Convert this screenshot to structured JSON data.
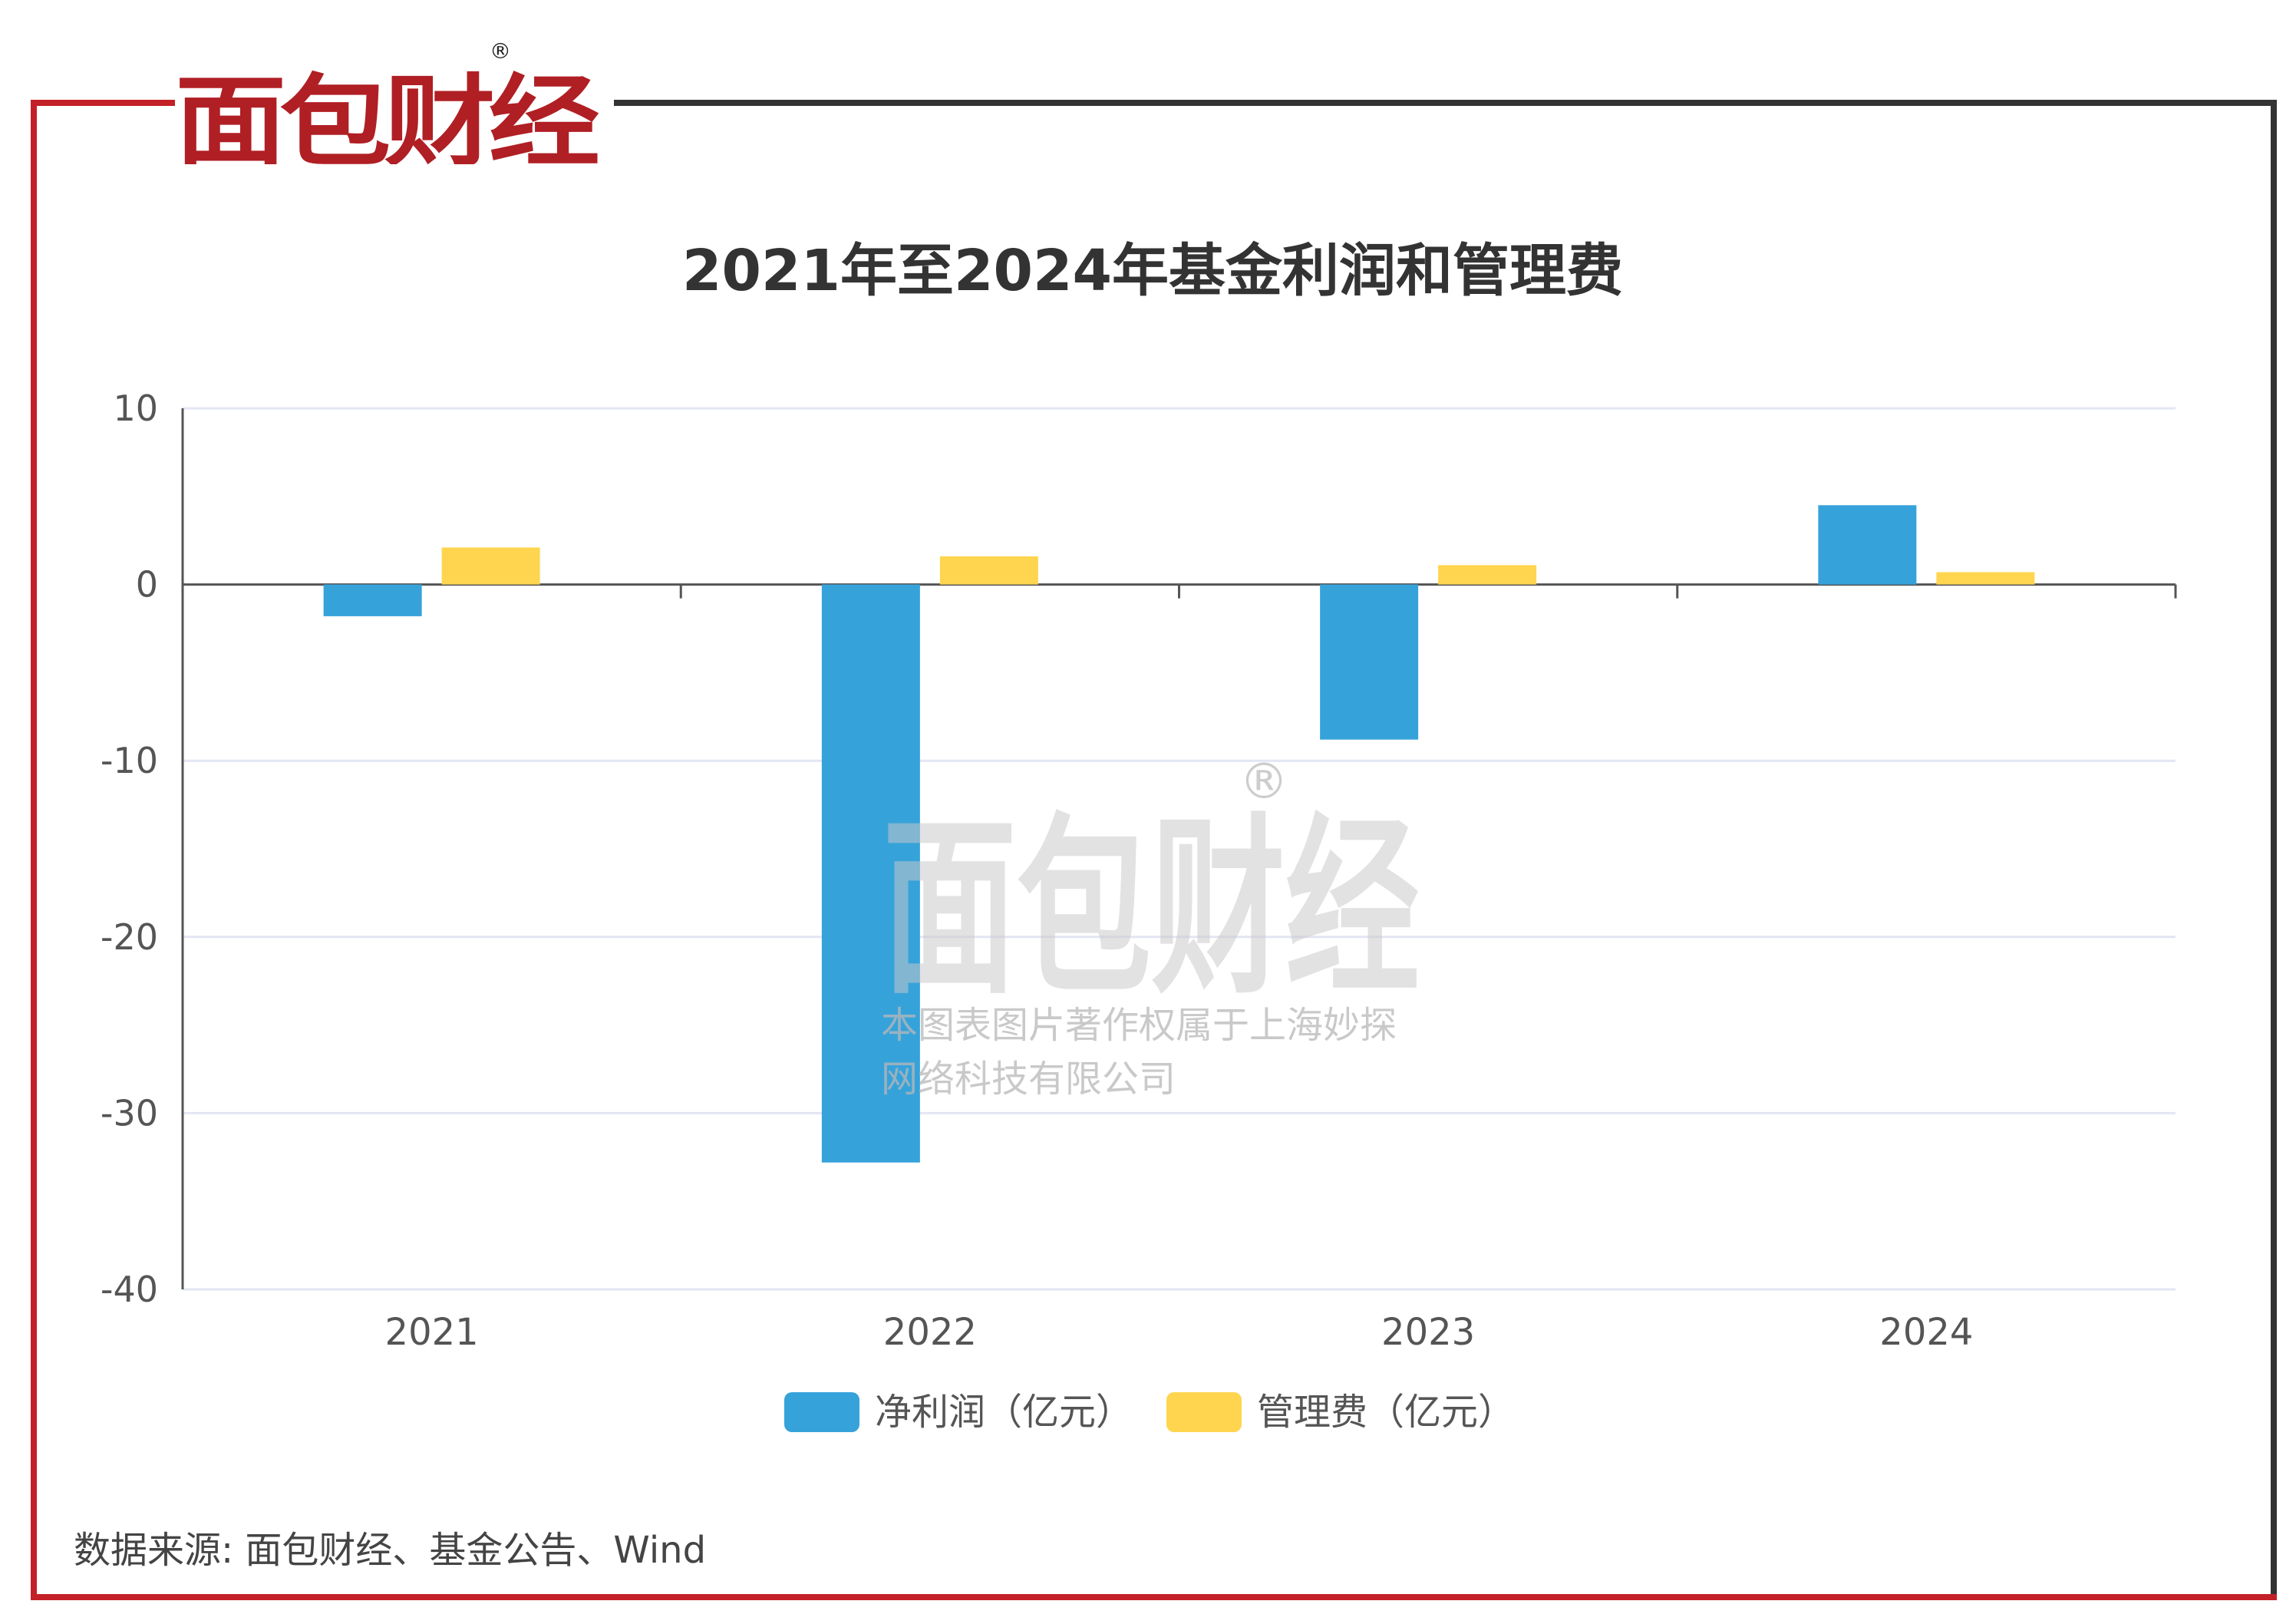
{
  "brand": {
    "logo_text": "面包财经",
    "registered_mark": "®"
  },
  "watermark": {
    "logo_text": "面包财经",
    "registered_mark": "®",
    "line1": "本图表图片著作权属于上海妙探",
    "line2": "网络科技有限公司"
  },
  "source": "数据来源: 面包财经、基金公告、Wind",
  "colors": {
    "frame_red": "#c42027",
    "frame_dark": "#333333",
    "net_profit": "#36a2da",
    "mgmt_fee": "#ffd54f",
    "grid": "#e3e6f3"
  },
  "chart_data": {
    "type": "bar",
    "title": "2021年至2024年基金利润和管理费",
    "categories": [
      "2021",
      "2022",
      "2023",
      "2024"
    ],
    "series": [
      {
        "name": "净利润（亿元）",
        "values": [
          -1.8,
          -32.8,
          -8.8,
          4.5
        ],
        "color": "#36a2da"
      },
      {
        "name": "管理费（亿元）",
        "values": [
          2.1,
          1.6,
          1.1,
          0.7
        ],
        "color": "#ffd54f"
      }
    ],
    "ylim": [
      -40,
      10
    ],
    "yticks": [
      10,
      0,
      -10,
      -20,
      -30,
      -40
    ],
    "ytick_labels": [
      "10",
      "0",
      "-10",
      "-20",
      "-30",
      "-40"
    ],
    "grid": true,
    "legend_position": "bottom-center"
  }
}
